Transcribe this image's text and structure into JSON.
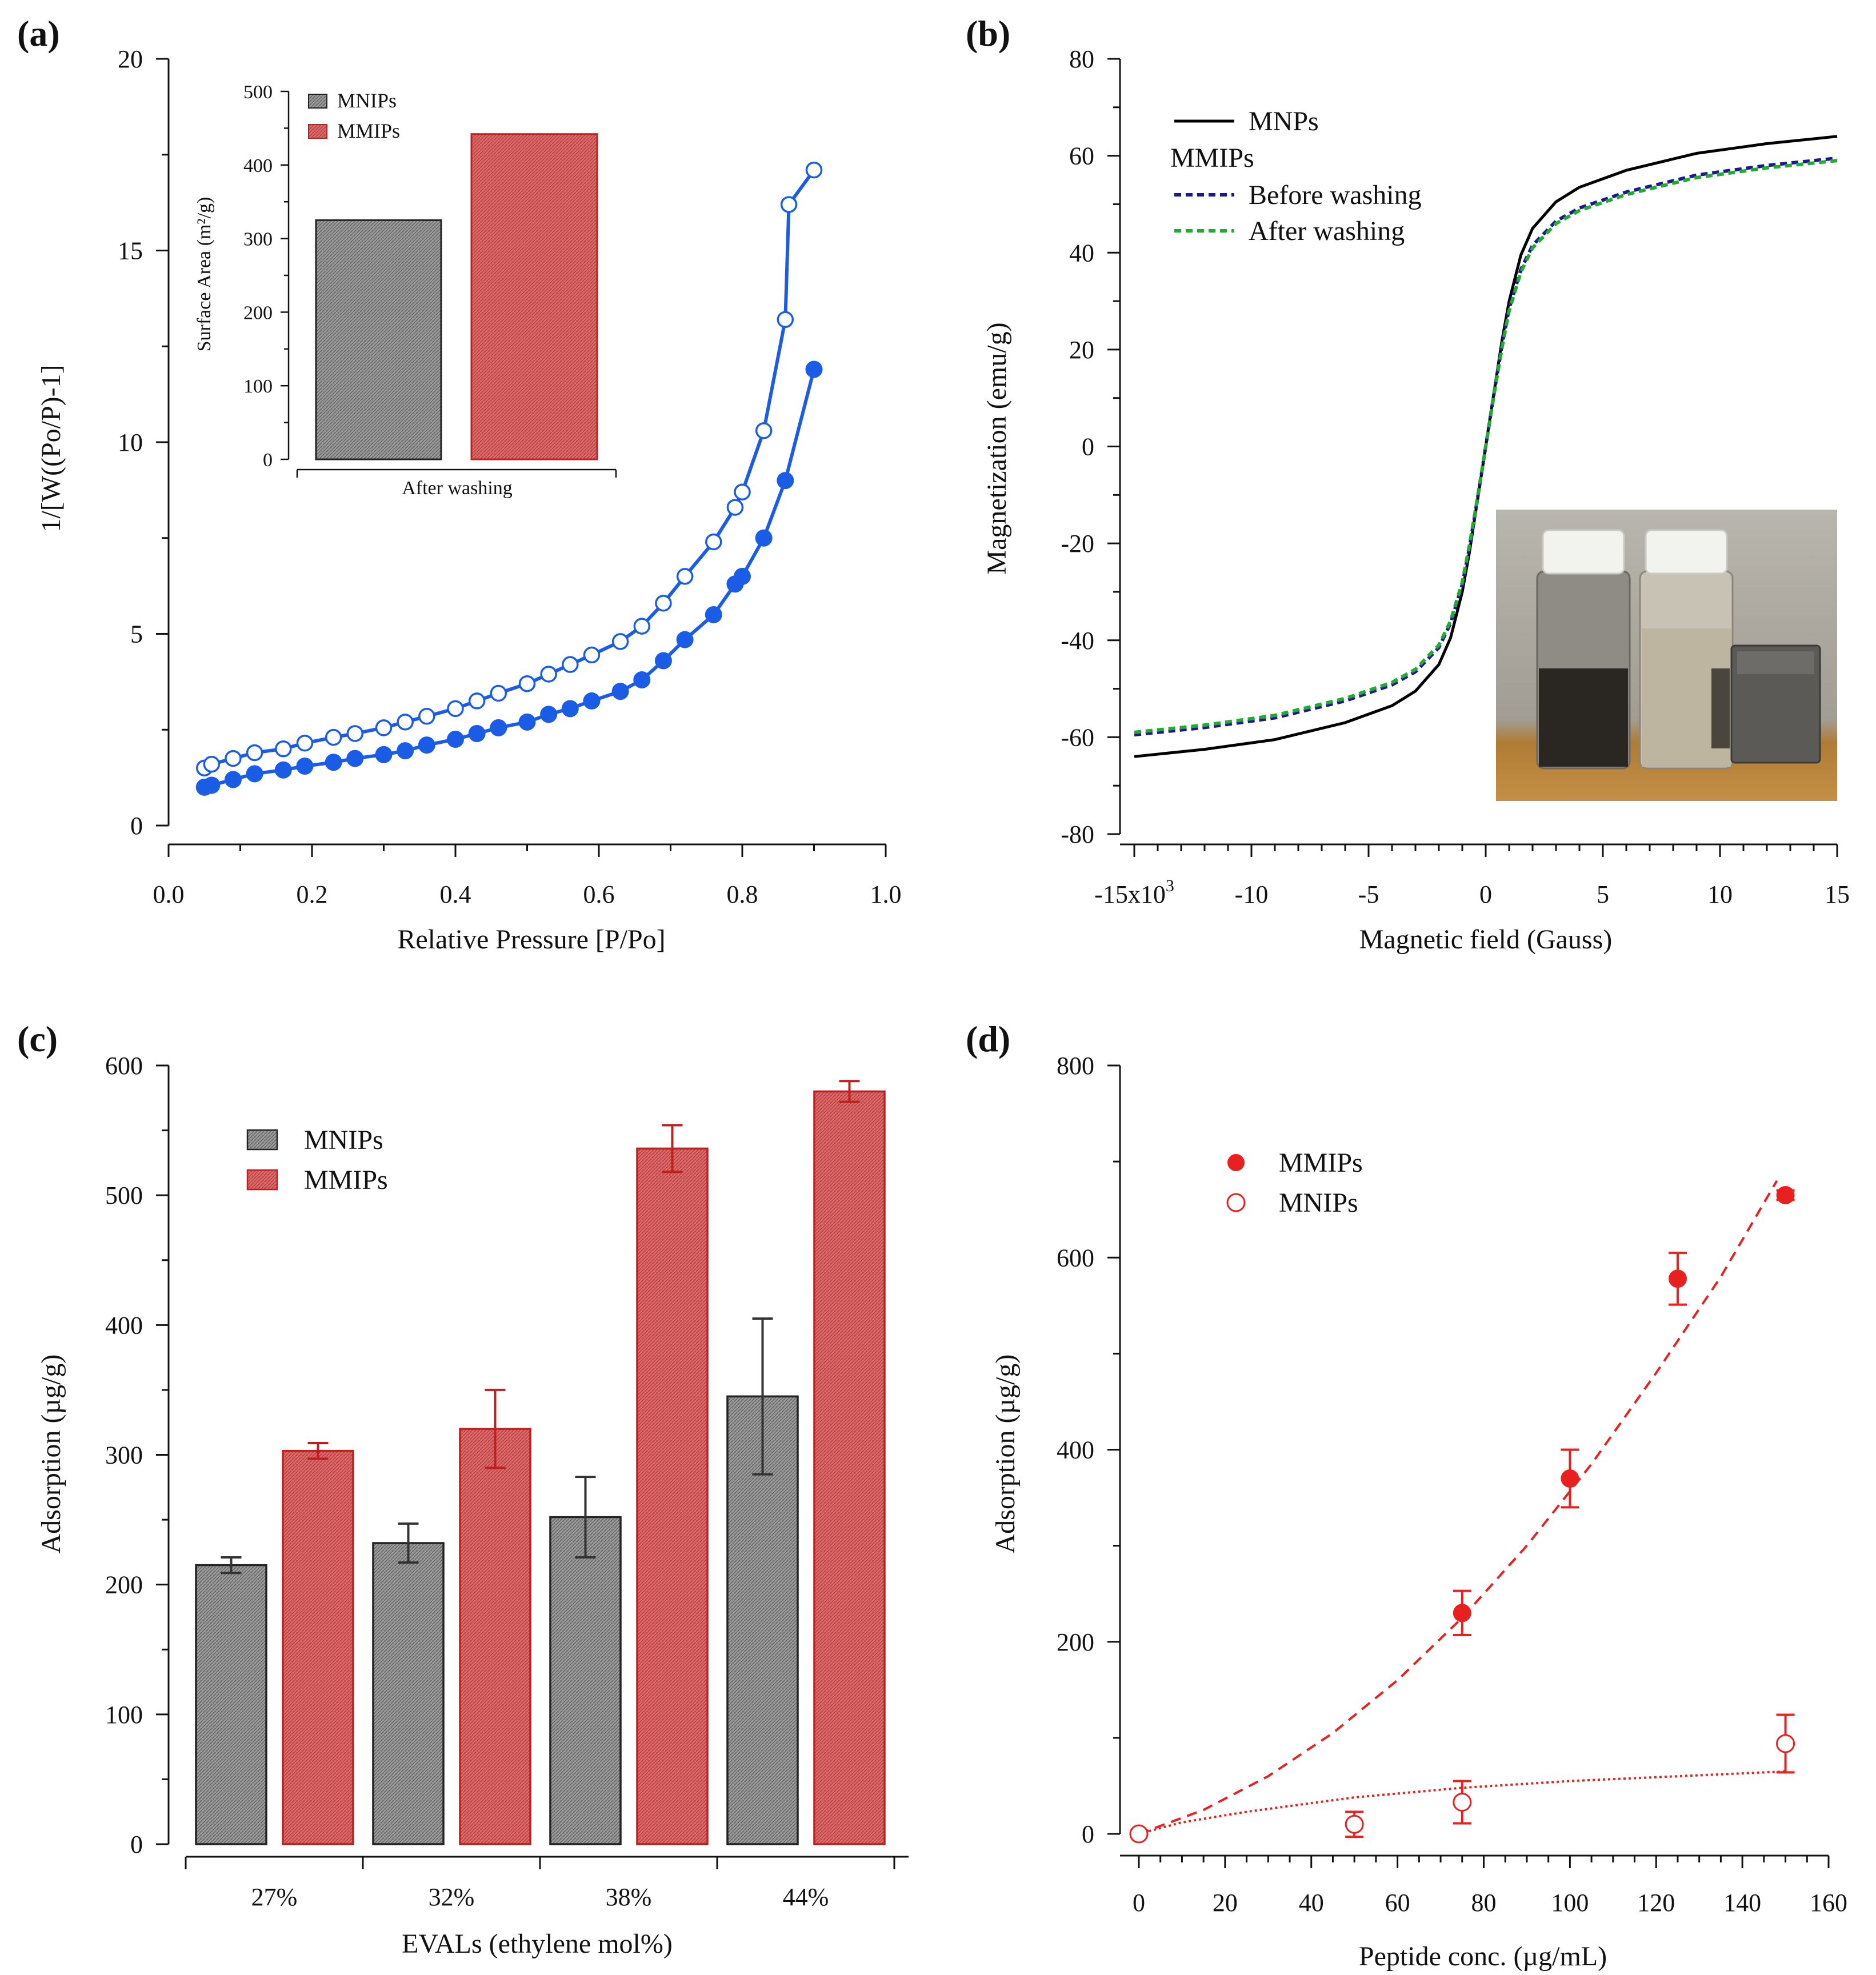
{
  "figure": {
    "panel_labels": [
      "(a)",
      "(b)",
      "(c)",
      "(d)"
    ]
  },
  "chart_data": [
    {
      "panel": "(a)",
      "type": "line",
      "xlabel": "Relative Pressure [P/Po]",
      "ylabel": "1/[W((Po/P)-1]",
      "xlim": [
        0.0,
        1.0
      ],
      "ylim": [
        0,
        20
      ],
      "xticks": [
        0.0,
        0.2,
        0.4,
        0.6,
        0.8,
        1.0
      ],
      "xtick_labels": [
        "0.0",
        "0.2",
        "0.4",
        "0.6",
        "0.8",
        "1.0"
      ],
      "yticks": [
        0,
        5,
        10,
        15,
        20
      ],
      "ytick_labels": [
        "0",
        "5",
        "10",
        "15",
        "20"
      ],
      "colors": {
        "series": "#1a5ce6"
      },
      "series": [
        {
          "name": "open circles",
          "marker": "open",
          "x": [
            0.05,
            0.06,
            0.09,
            0.12,
            0.16,
            0.19,
            0.23,
            0.26,
            0.3,
            0.33,
            0.36,
            0.4,
            0.43,
            0.46,
            0.5,
            0.53,
            0.56,
            0.59,
            0.63,
            0.66,
            0.69,
            0.72,
            0.76,
            0.79,
            0.8,
            0.83,
            0.86,
            0.865,
            0.9
          ],
          "y": [
            1.5,
            1.6,
            1.75,
            1.9,
            2.0,
            2.15,
            2.3,
            2.4,
            2.55,
            2.7,
            2.85,
            3.05,
            3.25,
            3.45,
            3.7,
            3.95,
            4.2,
            4.45,
            4.8,
            5.2,
            5.8,
            6.5,
            7.4,
            8.3,
            8.7,
            10.3,
            13.2,
            16.2,
            17.1
          ]
        },
        {
          "name": "filled circles",
          "marker": "filled",
          "x": [
            0.05,
            0.06,
            0.09,
            0.12,
            0.16,
            0.19,
            0.23,
            0.26,
            0.3,
            0.33,
            0.36,
            0.4,
            0.43,
            0.46,
            0.5,
            0.53,
            0.56,
            0.59,
            0.63,
            0.66,
            0.69,
            0.72,
            0.76,
            0.79,
            0.8,
            0.83,
            0.86,
            0.9
          ],
          "y": [
            1.0,
            1.05,
            1.2,
            1.35,
            1.45,
            1.55,
            1.65,
            1.75,
            1.85,
            1.95,
            2.1,
            2.25,
            2.4,
            2.55,
            2.7,
            2.9,
            3.05,
            3.25,
            3.5,
            3.8,
            4.3,
            4.85,
            5.5,
            6.3,
            6.5,
            7.5,
            9.0,
            11.9
          ]
        }
      ],
      "inset": {
        "type": "bar",
        "ylabel": "Surface Area (m²/g)",
        "xlabel": "After washing",
        "ylim": [
          0,
          500
        ],
        "yticks": [
          0,
          100,
          200,
          300,
          400,
          500
        ],
        "ytick_labels": [
          "0",
          "100",
          "200",
          "300",
          "400",
          "500"
        ],
        "series": [
          {
            "name": "MNIPs",
            "value": 325,
            "color": "#9a9a9a"
          },
          {
            "name": "MMIPs",
            "value": 442,
            "color": "#d45e5e"
          }
        ]
      }
    },
    {
      "panel": "(b)",
      "type": "line",
      "xlabel": "Magnetic field (Gauss)",
      "ylabel": "Magnetization (emu/g)",
      "xlim": [
        -15000,
        15000
      ],
      "ylim": [
        -80,
        80
      ],
      "xticks": [
        -15000,
        -10000,
        -5000,
        0,
        5000,
        10000,
        15000
      ],
      "xtick_labels": [
        "-15x10",
        "-10",
        "-5",
        "0",
        "5",
        "10",
        "15"
      ],
      "xtick_exponent": "3",
      "yticks": [
        -80,
        -60,
        -40,
        -20,
        0,
        20,
        40,
        60,
        80
      ],
      "ytick_labels": [
        "-80",
        "-60",
        "-40",
        "-20",
        "0",
        "20",
        "40",
        "60",
        "80"
      ],
      "legend_heading": "MMIPs",
      "series": [
        {
          "name": "MNPs",
          "style": "solid",
          "color": "#000000",
          "x": [
            -15000,
            -12000,
            -9000,
            -6000,
            -4000,
            -3000,
            -2000,
            -1500,
            -1000,
            -700,
            -400,
            -200,
            0,
            200,
            400,
            700,
            1000,
            1500,
            2000,
            3000,
            4000,
            6000,
            9000,
            12000,
            15000
          ],
          "y": [
            -64,
            -62.5,
            -60.5,
            -57,
            -53.5,
            -50.5,
            -45,
            -39.5,
            -30,
            -22,
            -12.6,
            -6.4,
            0,
            6.4,
            12.6,
            22,
            30,
            39.5,
            45,
            50.5,
            53.5,
            57,
            60.5,
            62.5,
            64
          ]
        },
        {
          "name": "Before washing",
          "style": "dashed",
          "color": "#1a1a8c",
          "x": [
            -15000,
            -12000,
            -9000,
            -6000,
            -4000,
            -3000,
            -2000,
            -1500,
            -1000,
            -700,
            -400,
            -200,
            0,
            200,
            400,
            700,
            1000,
            1500,
            2000,
            3000,
            4000,
            6000,
            9000,
            12000,
            15000
          ],
          "y": [
            -59.5,
            -58,
            -56,
            -52.5,
            -49.2,
            -46.5,
            -41.5,
            -36.5,
            -28.5,
            -21,
            -12.3,
            -6.2,
            0,
            6.2,
            12.3,
            21,
            28.5,
            36.5,
            41.5,
            46.5,
            49.2,
            52.5,
            56,
            58,
            59.5
          ]
        },
        {
          "name": "After washing",
          "style": "dashed",
          "color": "#22aa33",
          "x": [
            -15000,
            -12000,
            -9000,
            -6000,
            -4000,
            -3000,
            -2000,
            -1500,
            -1000,
            -700,
            -400,
            -200,
            0,
            200,
            400,
            700,
            1000,
            1500,
            2000,
            3000,
            4000,
            6000,
            9000,
            12000,
            15000
          ],
          "y": [
            -59,
            -57.5,
            -55.5,
            -52,
            -48.7,
            -46,
            -41,
            -36,
            -28,
            -20.5,
            -12,
            -6,
            0,
            6,
            12,
            20.5,
            28,
            36,
            41,
            46,
            48.7,
            52,
            55.5,
            57.5,
            59
          ]
        }
      ]
    },
    {
      "panel": "(c)",
      "type": "bar",
      "xlabel": "EVALs (ethylene mol%)",
      "ylabel": "Adsorption (µg/g)",
      "categories": [
        "27%",
        "32%",
        "38%",
        "44%"
      ],
      "ylim": [
        0,
        600
      ],
      "yticks": [
        0,
        100,
        200,
        300,
        400,
        500,
        600
      ],
      "ytick_labels": [
        "0",
        "100",
        "200",
        "300",
        "400",
        "500",
        "600"
      ],
      "series": [
        {
          "name": "MNIPs",
          "color": "#9a9a9a",
          "values": [
            215,
            232,
            252,
            345
          ],
          "errors": [
            6,
            15,
            31,
            60
          ]
        },
        {
          "name": "MMIPs",
          "color": "#d45e5e",
          "values": [
            303,
            320,
            536,
            580
          ],
          "errors": [
            6,
            30,
            18,
            8
          ]
        }
      ]
    },
    {
      "panel": "(d)",
      "type": "scatter",
      "xlabel": "Peptide conc. (µg/mL)",
      "ylabel": "Adsorption (µg/g)",
      "xlim": [
        0,
        160
      ],
      "ylim": [
        0,
        800
      ],
      "xticks": [
        0,
        20,
        40,
        60,
        80,
        100,
        120,
        140,
        160
      ],
      "xtick_labels": [
        "0",
        "20",
        "40",
        "60",
        "80",
        "100",
        "120",
        "140",
        "160"
      ],
      "yticks": [
        0,
        200,
        400,
        600,
        800
      ],
      "ytick_labels": [
        "0",
        "200",
        "400",
        "600",
        "800"
      ],
      "colors": {
        "series": "#e82020"
      },
      "series": [
        {
          "name": "MMIPs",
          "marker": "filled",
          "x": [
            0,
            75,
            100,
            125,
            150
          ],
          "y": [
            0,
            230,
            370,
            578,
            665
          ],
          "errors": [
            0,
            23,
            30,
            27,
            5
          ],
          "fit": {
            "style": "dashed",
            "x": [
              0,
              15,
              30,
              45,
              60,
              75,
              90,
              105,
              120,
              135,
              148
            ],
            "y": [
              0,
              25,
              60,
              105,
              160,
              225,
              300,
              385,
              480,
              580,
              680
            ]
          }
        },
        {
          "name": "MNIPs",
          "marker": "open",
          "x": [
            0,
            50,
            75,
            150
          ],
          "y": [
            0,
            10,
            33,
            94
          ],
          "errors": [
            0,
            13,
            22,
            30
          ],
          "fit": {
            "style": "dotted",
            "x": [
              0,
              10,
              25,
              50,
              75,
              100,
              125,
              150
            ],
            "y": [
              0,
              12,
              23,
              38,
              48,
              55,
              60,
              65
            ]
          }
        }
      ]
    }
  ]
}
